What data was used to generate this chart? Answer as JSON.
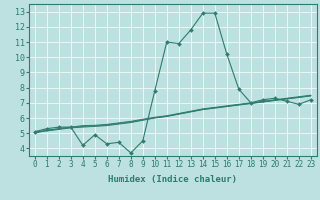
{
  "xlabel": "Humidex (Indice chaleur)",
  "bg_color": "#bde0e0",
  "line_color": "#2e7d6e",
  "xlim": [
    -0.5,
    23.5
  ],
  "ylim": [
    3.5,
    13.5
  ],
  "xticks": [
    0,
    1,
    2,
    3,
    4,
    5,
    6,
    7,
    8,
    9,
    10,
    11,
    12,
    13,
    14,
    15,
    16,
    17,
    18,
    19,
    20,
    21,
    22,
    23
  ],
  "yticks": [
    4,
    5,
    6,
    7,
    8,
    9,
    10,
    11,
    12,
    13
  ],
  "series": [
    [
      5.1,
      5.3,
      5.4,
      5.4,
      4.2,
      4.9,
      4.3,
      4.4,
      3.7,
      4.5,
      7.8,
      11.0,
      10.9,
      11.8,
      12.9,
      12.9,
      10.2,
      7.9,
      7.0,
      7.2,
      7.3,
      7.1,
      6.9,
      7.2
    ],
    [
      5.1,
      5.15,
      5.25,
      5.35,
      5.4,
      5.45,
      5.5,
      5.6,
      5.7,
      5.85,
      6.0,
      6.1,
      6.25,
      6.4,
      6.55,
      6.65,
      6.75,
      6.85,
      6.95,
      7.05,
      7.15,
      7.25,
      7.35,
      7.45
    ],
    [
      5.05,
      5.2,
      5.3,
      5.4,
      5.5,
      5.52,
      5.58,
      5.68,
      5.78,
      5.92,
      6.05,
      6.15,
      6.3,
      6.45,
      6.6,
      6.7,
      6.8,
      6.9,
      7.0,
      7.1,
      7.2,
      7.3,
      7.4,
      7.5
    ],
    [
      5.0,
      5.18,
      5.28,
      5.38,
      5.45,
      5.48,
      5.54,
      5.64,
      5.74,
      5.88,
      6.02,
      6.12,
      6.27,
      6.42,
      6.57,
      6.67,
      6.77,
      6.87,
      6.97,
      7.07,
      7.17,
      7.27,
      7.37,
      7.47
    ]
  ],
  "grid_color": "#ffffff",
  "spine_color": "#2e7d6e",
  "tick_labelsize": 5.5,
  "xlabel_fontsize": 6.5
}
